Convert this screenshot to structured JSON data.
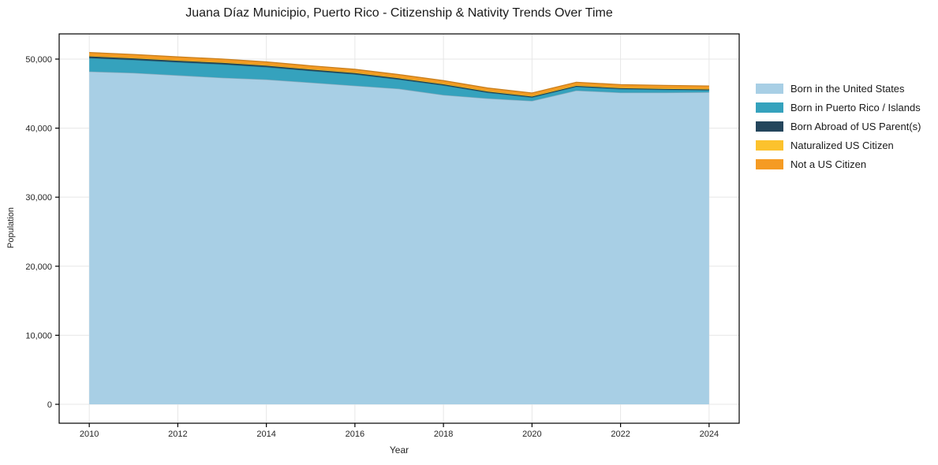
{
  "chart_data": {
    "type": "area",
    "stacked": true,
    "title": "Juana Díaz Municipio, Puerto Rico - Citizenship & Nativity Trends Over Time",
    "xlabel": "Year",
    "ylabel": "Population",
    "x": [
      2010,
      2011,
      2012,
      2013,
      2014,
      2015,
      2016,
      2017,
      2018,
      2019,
      2020,
      2021,
      2022,
      2023,
      2024
    ],
    "series": [
      {
        "name": "Born in the United States",
        "color": "#a8cfe5",
        "values": [
          48200,
          48000,
          47650,
          47300,
          47050,
          46600,
          46150,
          45700,
          44800,
          44300,
          43950,
          45450,
          45150,
          45150,
          45200
        ]
      },
      {
        "name": "Born in Puerto Rico / Islands",
        "color": "#35a2bd",
        "values": [
          1950,
          1880,
          1900,
          1950,
          1800,
          1700,
          1650,
          1350,
          1400,
          850,
          500,
          550,
          520,
          420,
          300
        ]
      },
      {
        "name": "Born Abroad of US Parent(s)",
        "color": "#24465c",
        "values": [
          230,
          220,
          210,
          200,
          190,
          180,
          170,
          160,
          150,
          140,
          130,
          120,
          120,
          110,
          100
        ]
      },
      {
        "name": "Naturalized US Citizen",
        "color": "#fcc22d",
        "values": [
          120,
          120,
          120,
          130,
          130,
          130,
          140,
          140,
          140,
          140,
          140,
          150,
          150,
          150,
          150
        ]
      },
      {
        "name": "Not a US Citizen",
        "color": "#f59b23",
        "values": [
          450,
          450,
          440,
          430,
          430,
          420,
          410,
          400,
          390,
          380,
          370,
          370,
          360,
          360,
          350
        ]
      }
    ],
    "xticks": {
      "values": [
        2010,
        2012,
        2014,
        2016,
        2018,
        2020,
        2022,
        2024
      ],
      "labels": [
        "2010",
        "2012",
        "2014",
        "2016",
        "2018",
        "2020",
        "2022",
        "2024"
      ]
    },
    "yticks": {
      "values": [
        0,
        10000,
        20000,
        30000,
        40000,
        50000
      ],
      "labels": [
        "0",
        "10,000",
        "20,000",
        "30,000",
        "40,000",
        "50,000"
      ]
    },
    "xlim": [
      2009.32,
      2024.68
    ],
    "ylim": [
      -2740,
      53650
    ],
    "grid": true,
    "legend_position": "right",
    "colors": {
      "background": "#ffffff",
      "grid": "#e7e7e7",
      "spine": "#000000",
      "tick_text": "#262626",
      "title_text": "#1a1a1a"
    }
  }
}
